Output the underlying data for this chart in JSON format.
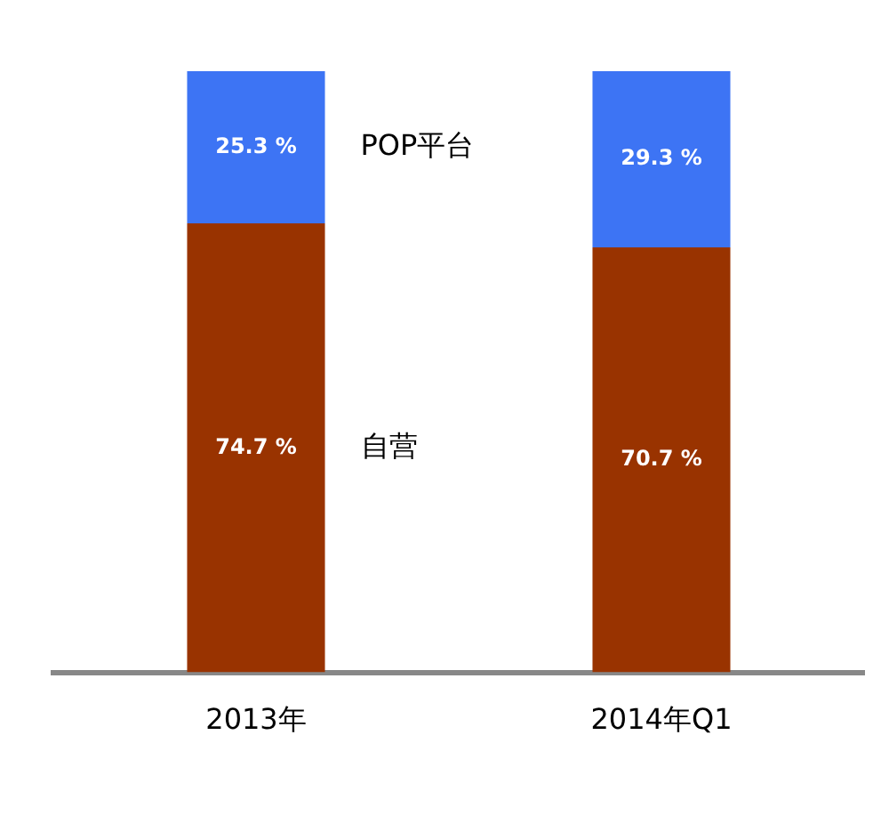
{
  "chart_data": {
    "type": "bar",
    "stacked": true,
    "categories": [
      "2013年",
      "2014年Q1"
    ],
    "ylim": [
      0,
      100
    ],
    "tick_labels": "x",
    "grid": false,
    "legend": false,
    "series": [
      {
        "name": "自营",
        "color": "#993300",
        "values": [
          74.7,
          70.7
        ],
        "value_labels": [
          "74.7 %",
          "70.7 %"
        ]
      },
      {
        "name": "POP平台",
        "color": "#3d74f4",
        "values": [
          25.3,
          29.3
        ],
        "value_labels": [
          "25.3 %",
          "29.3 %"
        ]
      }
    ]
  }
}
